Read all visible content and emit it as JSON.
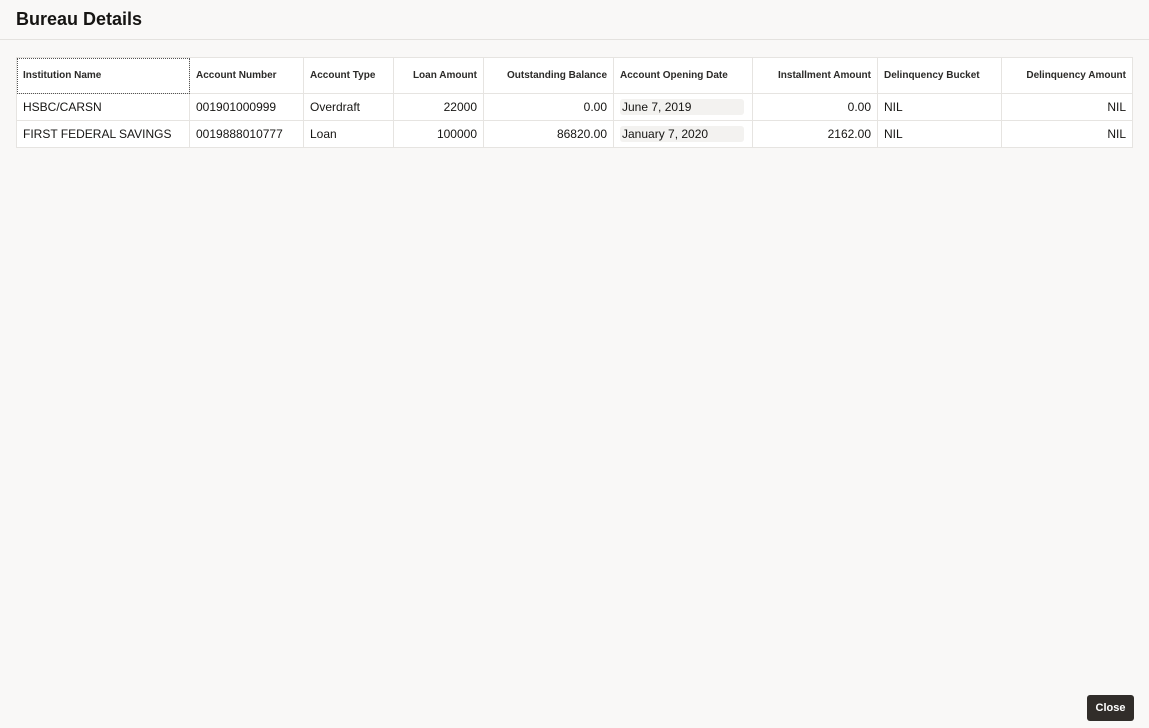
{
  "dialog": {
    "title": "Bureau Details",
    "close_label": "Close"
  },
  "table": {
    "columns": [
      "Institution Name",
      "Account Number",
      "Account Type",
      "Loan Amount",
      "Outstanding Balance",
      "Account Opening Date",
      "Installment Amount",
      "Delinquency Bucket",
      "Delinquency Amount"
    ],
    "rows": [
      [
        "HSBC/CARSN",
        "001901000999",
        "Overdraft",
        "22000",
        "0.00",
        "June 7, 2019",
        "0.00",
        "NIL",
        "NIL"
      ],
      [
        "FIRST FEDERAL SAVINGS",
        "0019888010777",
        "Loan",
        "100000",
        "86820.00",
        "January 7, 2020",
        "2162.00",
        "NIL",
        "NIL"
      ]
    ]
  }
}
